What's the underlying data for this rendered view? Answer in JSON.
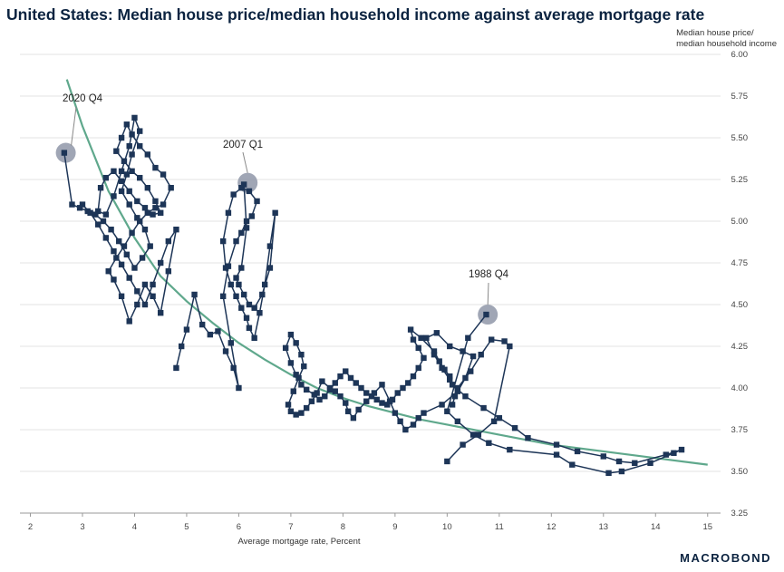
{
  "chart_data": {
    "type": "scatter",
    "title": "United States: Median house price/median household income against average mortgage rate",
    "xlabel": "Average mortgage rate, Percent",
    "ylabel_lines": [
      "Median house price/",
      "median household income"
    ],
    "xlim": [
      1.8,
      15.3
    ],
    "ylim": [
      3.25,
      6.0
    ],
    "x_ticks": [
      2,
      3,
      4,
      5,
      6,
      7,
      8,
      9,
      10,
      11,
      12,
      13,
      14,
      15
    ],
    "y_ticks": [
      "3.25",
      "3.50",
      "3.75",
      "4.00",
      "4.25",
      "4.50",
      "4.75",
      "5.00",
      "5.25",
      "5.50",
      "5.75",
      "6.00"
    ],
    "grid": "horizontal",
    "colors": {
      "series": "#1d3557",
      "trend": "#5fa88c",
      "highlight": "#8f97a8",
      "grid": "#e3e3e3"
    },
    "trend_line": {
      "x": [
        2.7,
        3.0,
        3.5,
        4.0,
        4.5,
        5.0,
        5.5,
        6.0,
        6.5,
        7.0,
        7.5,
        8.0,
        8.5,
        9.0,
        9.5,
        10.0,
        11.0,
        12.0,
        13.0,
        14.0,
        15.0
      ],
      "y": [
        5.85,
        5.57,
        5.18,
        4.9,
        4.67,
        4.52,
        4.39,
        4.27,
        4.17,
        4.08,
        4.0,
        3.94,
        3.89,
        3.85,
        3.81,
        3.78,
        3.72,
        3.66,
        3.62,
        3.58,
        3.54
      ]
    },
    "series": [
      {
        "x": [
          10.0,
          10.3,
          10.6,
          10.9,
          11.2,
          11.1,
          10.85,
          10.65,
          10.45,
          10.2,
          10.1,
          10.15,
          10.35,
          10.5,
          10.3,
          10.05,
          9.8,
          9.6,
          9.75,
          9.9,
          10.05,
          10.2,
          9.9,
          9.55,
          9.45,
          9.35,
          9.2,
          9.1,
          9.0,
          8.9,
          8.75,
          8.6,
          8.45,
          8.3,
          8.2,
          8.1,
          8.05,
          7.95,
          7.85,
          7.75,
          7.6,
          7.5,
          7.4,
          7.3,
          7.2,
          7.1,
          7.0,
          6.95,
          7.05,
          7.15,
          7.25,
          7.2,
          7.1,
          7.0,
          6.9,
          7.0,
          7.1,
          7.2,
          7.3,
          7.45,
          7.55,
          7.65,
          7.75,
          7.85,
          7.95,
          8.05,
          8.15,
          8.25,
          8.35,
          8.45,
          8.55,
          8.65,
          8.75,
          8.85,
          8.95,
          9.05,
          9.15,
          9.25,
          9.35,
          9.45,
          9.55,
          9.45,
          9.35,
          9.3,
          9.5,
          9.75,
          9.85,
          9.95,
          10.05,
          10.1,
          10.35,
          10.7,
          11.0,
          11.3,
          11.55,
          12.1,
          12.5,
          13.0,
          13.3,
          13.6,
          14.2,
          14.5,
          14.35,
          13.9,
          13.35,
          13.1,
          12.4,
          12.1,
          11.2,
          10.8,
          10.5,
          10.2,
          10.0,
          10.4,
          10.75
        ],
        "y": [
          3.56,
          3.66,
          3.72,
          3.8,
          4.25,
          4.28,
          4.29,
          4.2,
          4.1,
          4.0,
          3.9,
          3.95,
          4.06,
          4.19,
          4.22,
          4.25,
          4.33,
          4.3,
          4.2,
          4.12,
          4.05,
          3.98,
          3.9,
          3.85,
          3.82,
          3.78,
          3.75,
          3.8,
          3.85,
          3.92,
          4.02,
          3.97,
          3.92,
          3.87,
          3.82,
          3.86,
          3.91,
          3.95,
          3.98,
          4.0,
          4.04,
          3.97,
          3.92,
          3.88,
          3.85,
          3.84,
          3.86,
          3.9,
          3.98,
          4.06,
          4.13,
          4.2,
          4.27,
          4.32,
          4.24,
          4.15,
          4.08,
          4.02,
          3.99,
          3.96,
          3.93,
          3.95,
          3.99,
          4.03,
          4.07,
          4.1,
          4.06,
          4.03,
          4.0,
          3.97,
          3.95,
          3.93,
          3.91,
          3.9,
          3.93,
          3.97,
          4.0,
          4.03,
          4.07,
          4.12,
          4.18,
          4.24,
          4.29,
          4.35,
          4.3,
          4.22,
          4.16,
          4.11,
          4.07,
          4.02,
          3.95,
          3.88,
          3.82,
          3.76,
          3.7,
          3.66,
          3.62,
          3.59,
          3.56,
          3.55,
          3.6,
          3.63,
          3.61,
          3.55,
          3.5,
          3.49,
          3.54,
          3.6,
          3.63,
          3.67,
          3.72,
          3.8,
          3.86,
          4.3,
          4.44
        ]
      },
      {
        "x": [
          4.8,
          4.9,
          5.0,
          5.15,
          5.3,
          5.45,
          5.6,
          5.75,
          5.9,
          6.0,
          5.85,
          5.7,
          5.8,
          5.95,
          6.05,
          6.15,
          6.25,
          6.35,
          6.2,
          6.05,
          5.9,
          5.8,
          5.7,
          5.75,
          5.85,
          5.95,
          6.05,
          6.15,
          6.2,
          6.3,
          6.4,
          6.5,
          6.6,
          6.7,
          6.6,
          6.45,
          6.3,
          6.2,
          6.1,
          6.0,
          5.95,
          6.05,
          6.15,
          6.1
        ],
        "y": [
          4.12,
          4.25,
          4.35,
          4.56,
          4.38,
          4.32,
          4.34,
          4.22,
          4.12,
          4.0,
          4.27,
          4.55,
          4.73,
          4.88,
          4.93,
          5.0,
          5.03,
          5.12,
          5.18,
          5.2,
          5.16,
          5.05,
          4.88,
          4.72,
          4.62,
          4.55,
          4.48,
          4.42,
          4.36,
          4.3,
          4.45,
          4.62,
          4.85,
          5.05,
          4.72,
          4.56,
          4.48,
          4.5,
          4.56,
          4.62,
          4.66,
          4.72,
          4.96,
          5.22
        ]
      },
      {
        "x": [
          3.0,
          3.15,
          3.3,
          3.45,
          3.6,
          3.75,
          3.9,
          4.05,
          4.2,
          4.35,
          4.5,
          4.65,
          4.8,
          4.65,
          4.5,
          4.35,
          4.2,
          4.05,
          3.9,
          3.75,
          3.6,
          3.5,
          3.65,
          3.8,
          3.95,
          4.1,
          4.25,
          4.4,
          4.55,
          4.7,
          4.55,
          4.4,
          4.25,
          4.1,
          3.95,
          3.85,
          3.75,
          3.65,
          3.8,
          3.95,
          4.1,
          4.25,
          4.4,
          4.5,
          4.35,
          4.2,
          4.05,
          3.9,
          3.75,
          3.6,
          3.45,
          3.35,
          3.3,
          3.45,
          3.6,
          3.75,
          3.9,
          4.0,
          4.1,
          3.95,
          3.85,
          3.75,
          3.9,
          4.05,
          4.2,
          4.3,
          4.15,
          4.0,
          3.85,
          3.7,
          3.55,
          3.4,
          3.25,
          3.1,
          2.95,
          2.8,
          2.65
        ],
        "y": [
          5.1,
          5.05,
          4.98,
          4.9,
          4.82,
          4.74,
          4.66,
          4.58,
          4.5,
          4.62,
          4.75,
          4.88,
          4.95,
          4.7,
          4.45,
          4.55,
          4.62,
          4.5,
          4.4,
          4.55,
          4.65,
          4.7,
          4.78,
          4.85,
          4.93,
          5.0,
          5.05,
          5.08,
          5.1,
          5.2,
          5.28,
          5.32,
          5.4,
          5.45,
          5.52,
          5.58,
          5.5,
          5.42,
          5.36,
          5.3,
          5.26,
          5.2,
          5.12,
          5.05,
          5.04,
          5.08,
          5.12,
          5.18,
          5.24,
          5.3,
          5.26,
          5.2,
          5.06,
          5.04,
          5.15,
          5.3,
          5.45,
          5.62,
          5.54,
          5.4,
          5.28,
          5.18,
          5.1,
          5.02,
          4.95,
          4.85,
          4.78,
          4.72,
          4.8,
          4.88,
          4.95,
          5.0,
          5.04,
          5.06,
          5.08,
          5.1,
          5.41
        ]
      }
    ],
    "annotations": [
      {
        "label": "2020 Q4",
        "x": 2.68,
        "y": 5.41
      },
      {
        "label": "2007 Q1",
        "x": 6.17,
        "y": 5.23
      },
      {
        "label": "1988 Q4",
        "x": 10.78,
        "y": 4.44
      }
    ]
  },
  "branding": {
    "logo_text": "MACROBOND"
  }
}
